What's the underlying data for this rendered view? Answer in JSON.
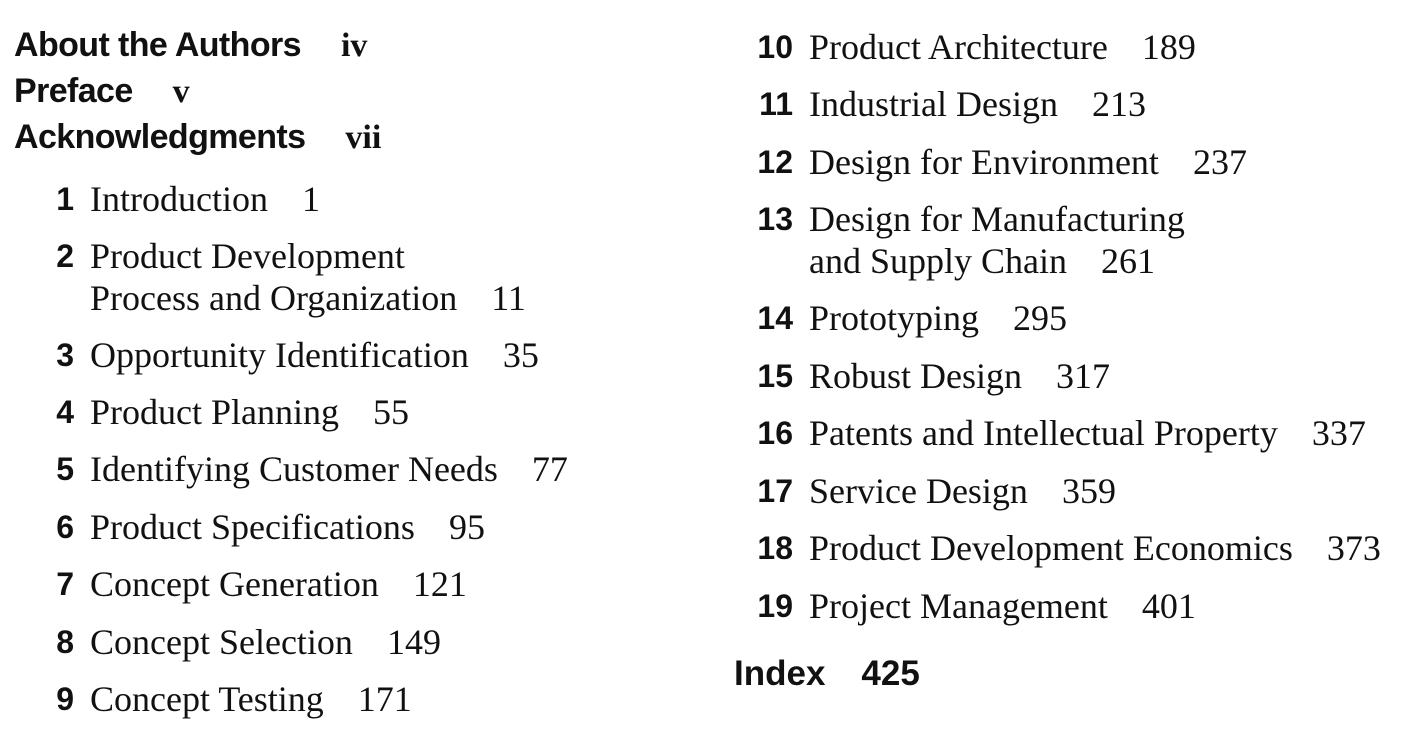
{
  "front_matter": [
    {
      "label": "About the Authors",
      "page": "iv"
    },
    {
      "label": "Preface",
      "page": "v"
    },
    {
      "label": "Acknowledgments",
      "page": "vii"
    }
  ],
  "chapters": [
    {
      "number": "1",
      "line1": "Introduction",
      "line2": "",
      "page": "1"
    },
    {
      "number": "2",
      "line1": "Product Development",
      "line2": "Process and Organization",
      "page": "11"
    },
    {
      "number": "3",
      "line1": "Opportunity Identification",
      "line2": "",
      "page": "35"
    },
    {
      "number": "4",
      "line1": "Product Planning",
      "line2": "",
      "page": "55"
    },
    {
      "number": "5",
      "line1": "Identifying Customer Needs",
      "line2": "",
      "page": "77"
    },
    {
      "number": "6",
      "line1": "Product Specifications",
      "line2": "",
      "page": "95"
    },
    {
      "number": "7",
      "line1": "Concept Generation",
      "line2": "",
      "page": "121"
    },
    {
      "number": "8",
      "line1": "Concept Selection",
      "line2": "",
      "page": "149"
    },
    {
      "number": "9",
      "line1": "Concept Testing",
      "line2": "",
      "page": "171"
    },
    {
      "number": "10",
      "line1": "Product Architecture",
      "line2": "",
      "page": "189"
    },
    {
      "number": "11",
      "line1": "Industrial Design",
      "line2": "",
      "page": "213"
    },
    {
      "number": "12",
      "line1": "Design for Environment",
      "line2": "",
      "page": "237"
    },
    {
      "number": "13",
      "line1": "Design for Manufacturing",
      "line2": "and Supply Chain",
      "page": "261"
    },
    {
      "number": "14",
      "line1": "Prototyping",
      "line2": "",
      "page": "295"
    },
    {
      "number": "15",
      "line1": "Robust Design",
      "line2": "",
      "page": "317"
    },
    {
      "number": "16",
      "line1": "Patents and Intellectual Property",
      "line2": "",
      "page": "337"
    },
    {
      "number": "17",
      "line1": "Service Design",
      "line2": "",
      "page": "359"
    },
    {
      "number": "18",
      "line1": "Product Development Economics",
      "line2": "",
      "page": "373"
    },
    {
      "number": "19",
      "line1": "Project Management",
      "line2": "",
      "page": "401"
    }
  ],
  "index": {
    "label": "Index",
    "page": "425"
  }
}
